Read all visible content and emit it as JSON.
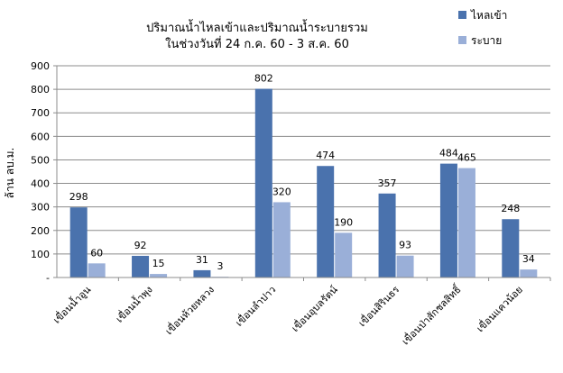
{
  "chart_data": {
    "type": "bar",
    "title": "ปริมาณน้ำไหลเข้าและปริมาณน้ำระบายรวม",
    "subtitle": "ในช่วงวันที่ 24 ก.ค. 60 - 3 ส.ค. 60",
    "ylabel": "ล้าน ลบ.ม.",
    "xlabel": "",
    "ylim": [
      0,
      900
    ],
    "yticks": [
      900,
      800,
      700,
      600,
      500,
      400,
      300,
      200,
      100,
      0
    ],
    "ytick_labels": [
      "900",
      "800",
      "700",
      "600",
      "500",
      "400",
      "300",
      "200",
      "100",
      "-"
    ],
    "grid": true,
    "legend_position": "top-right",
    "categories": [
      "เขื่อนน้ำอูน",
      "เขื่อนน้ำพุง",
      "เขื่อนห้วยหลวง",
      "เขื่อนลำปาว",
      "เขื่อนอุบลรัตน์",
      "เขื่อนสิรินธร",
      "เขื่อนป่าสักชลสิทธิ์",
      "เขื่อนแควน้อย"
    ],
    "series": [
      {
        "name": "ไหลเข้า",
        "color": "#4a72ad",
        "values": [
          298,
          92,
          31,
          802,
          474,
          357,
          484,
          248
        ]
      },
      {
        "name": "ระบาย",
        "color": "#9aafd8",
        "values": [
          60,
          15,
          3,
          320,
          190,
          93,
          465,
          34
        ]
      }
    ]
  }
}
